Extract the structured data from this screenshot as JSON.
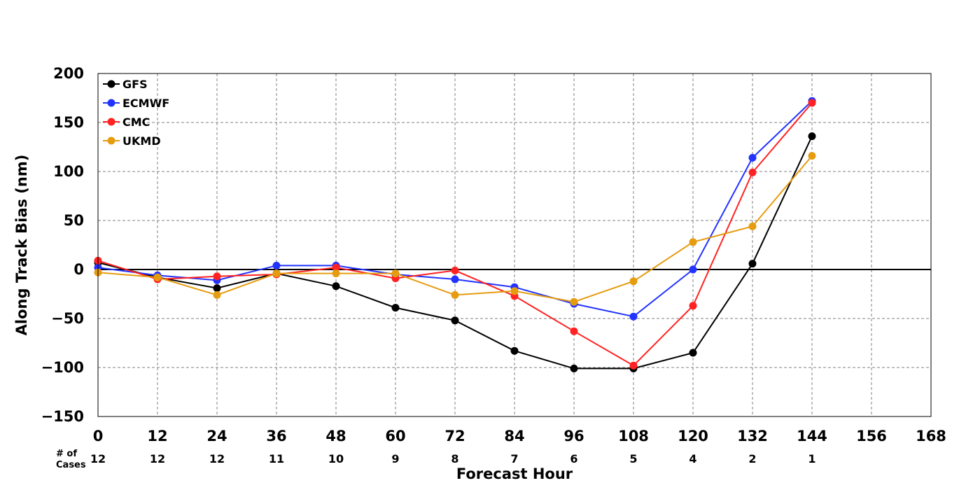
{
  "chart_data": {
    "type": "line",
    "xlabel": "Forecast Hour",
    "ylabel": "Along Track Bias (nm)",
    "xlim": [
      0,
      168
    ],
    "ylim": [
      -150,
      200
    ],
    "x_ticks": [
      0,
      12,
      24,
      36,
      48,
      60,
      72,
      84,
      96,
      108,
      120,
      132,
      144,
      156,
      168
    ],
    "y_ticks": [
      -150,
      -100,
      -50,
      0,
      50,
      100,
      150,
      200
    ],
    "y_tick_labels": [
      "−150",
      "−100",
      "−50",
      "0",
      "50",
      "100",
      "150",
      "200"
    ],
    "grid": true,
    "zero_line": true,
    "legend_position": "top-left",
    "cases_title": "# of Cases",
    "cases_title_lines": [
      "# of",
      "Cases"
    ],
    "cases": [
      12,
      12,
      12,
      11,
      10,
      9,
      8,
      7,
      6,
      5,
      4,
      2,
      1
    ],
    "x": [
      0,
      12,
      24,
      36,
      48,
      60,
      72,
      84,
      96,
      108,
      120,
      132,
      144
    ],
    "series": [
      {
        "name": "GFS",
        "color": "#000000",
        "values": [
          7,
          -8,
          -19,
          -4,
          -17,
          -39,
          -52,
          -83,
          -101,
          -101,
          -85,
          6,
          136
        ]
      },
      {
        "name": "ECMWF",
        "color": "#2233ff",
        "values": [
          2,
          -6,
          -11,
          4,
          4,
          -5,
          -10,
          -18,
          -35,
          -48,
          0,
          114,
          172
        ]
      },
      {
        "name": "CMC",
        "color": "#ff2222",
        "values": [
          9,
          -10,
          -7,
          -5,
          2,
          -9,
          -1,
          -27,
          -63,
          -98,
          -37,
          99,
          170
        ]
      },
      {
        "name": "UKMD",
        "color": "#e59c10",
        "values": [
          -3,
          -8,
          -26,
          -4,
          -4,
          -4,
          -26,
          -22,
          -33,
          -12,
          28,
          44,
          116
        ]
      }
    ]
  }
}
